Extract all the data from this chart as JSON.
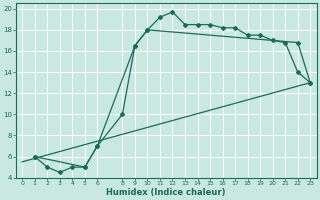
{
  "xlabel": "Humidex (Indice chaleur)",
  "bg_color": "#c8e8e0",
  "grid_color": "#ffffff",
  "line_color": "#1a6b5a",
  "xlim": [
    -0.5,
    23.5
  ],
  "ylim": [
    4,
    20.5
  ],
  "xticks": [
    0,
    1,
    2,
    3,
    4,
    5,
    6,
    8,
    9,
    10,
    11,
    12,
    13,
    14,
    15,
    16,
    17,
    18,
    19,
    20,
    21,
    22,
    23
  ],
  "yticks": [
    4,
    6,
    8,
    10,
    12,
    14,
    16,
    18,
    20
  ],
  "curve1_x": [
    1,
    2,
    3,
    4,
    5,
    6,
    8,
    9,
    10,
    11,
    12,
    13,
    14,
    15,
    16,
    17,
    18,
    19,
    20,
    21,
    22,
    23
  ],
  "curve1_y": [
    6.0,
    5.0,
    4.5,
    5.0,
    5.0,
    7.0,
    10.0,
    16.5,
    18.0,
    19.2,
    19.7,
    18.5,
    18.5,
    18.5,
    18.2,
    18.2,
    17.5,
    17.5,
    17.0,
    16.8,
    14.0,
    13.0
  ],
  "curve2_x": [
    1,
    5,
    6,
    9,
    10,
    22,
    23
  ],
  "curve2_y": [
    6.0,
    5.0,
    7.0,
    16.5,
    18.0,
    16.8,
    13.0
  ],
  "curve3_x": [
    0,
    23
  ],
  "curve3_y": [
    5.5,
    13.0
  ]
}
